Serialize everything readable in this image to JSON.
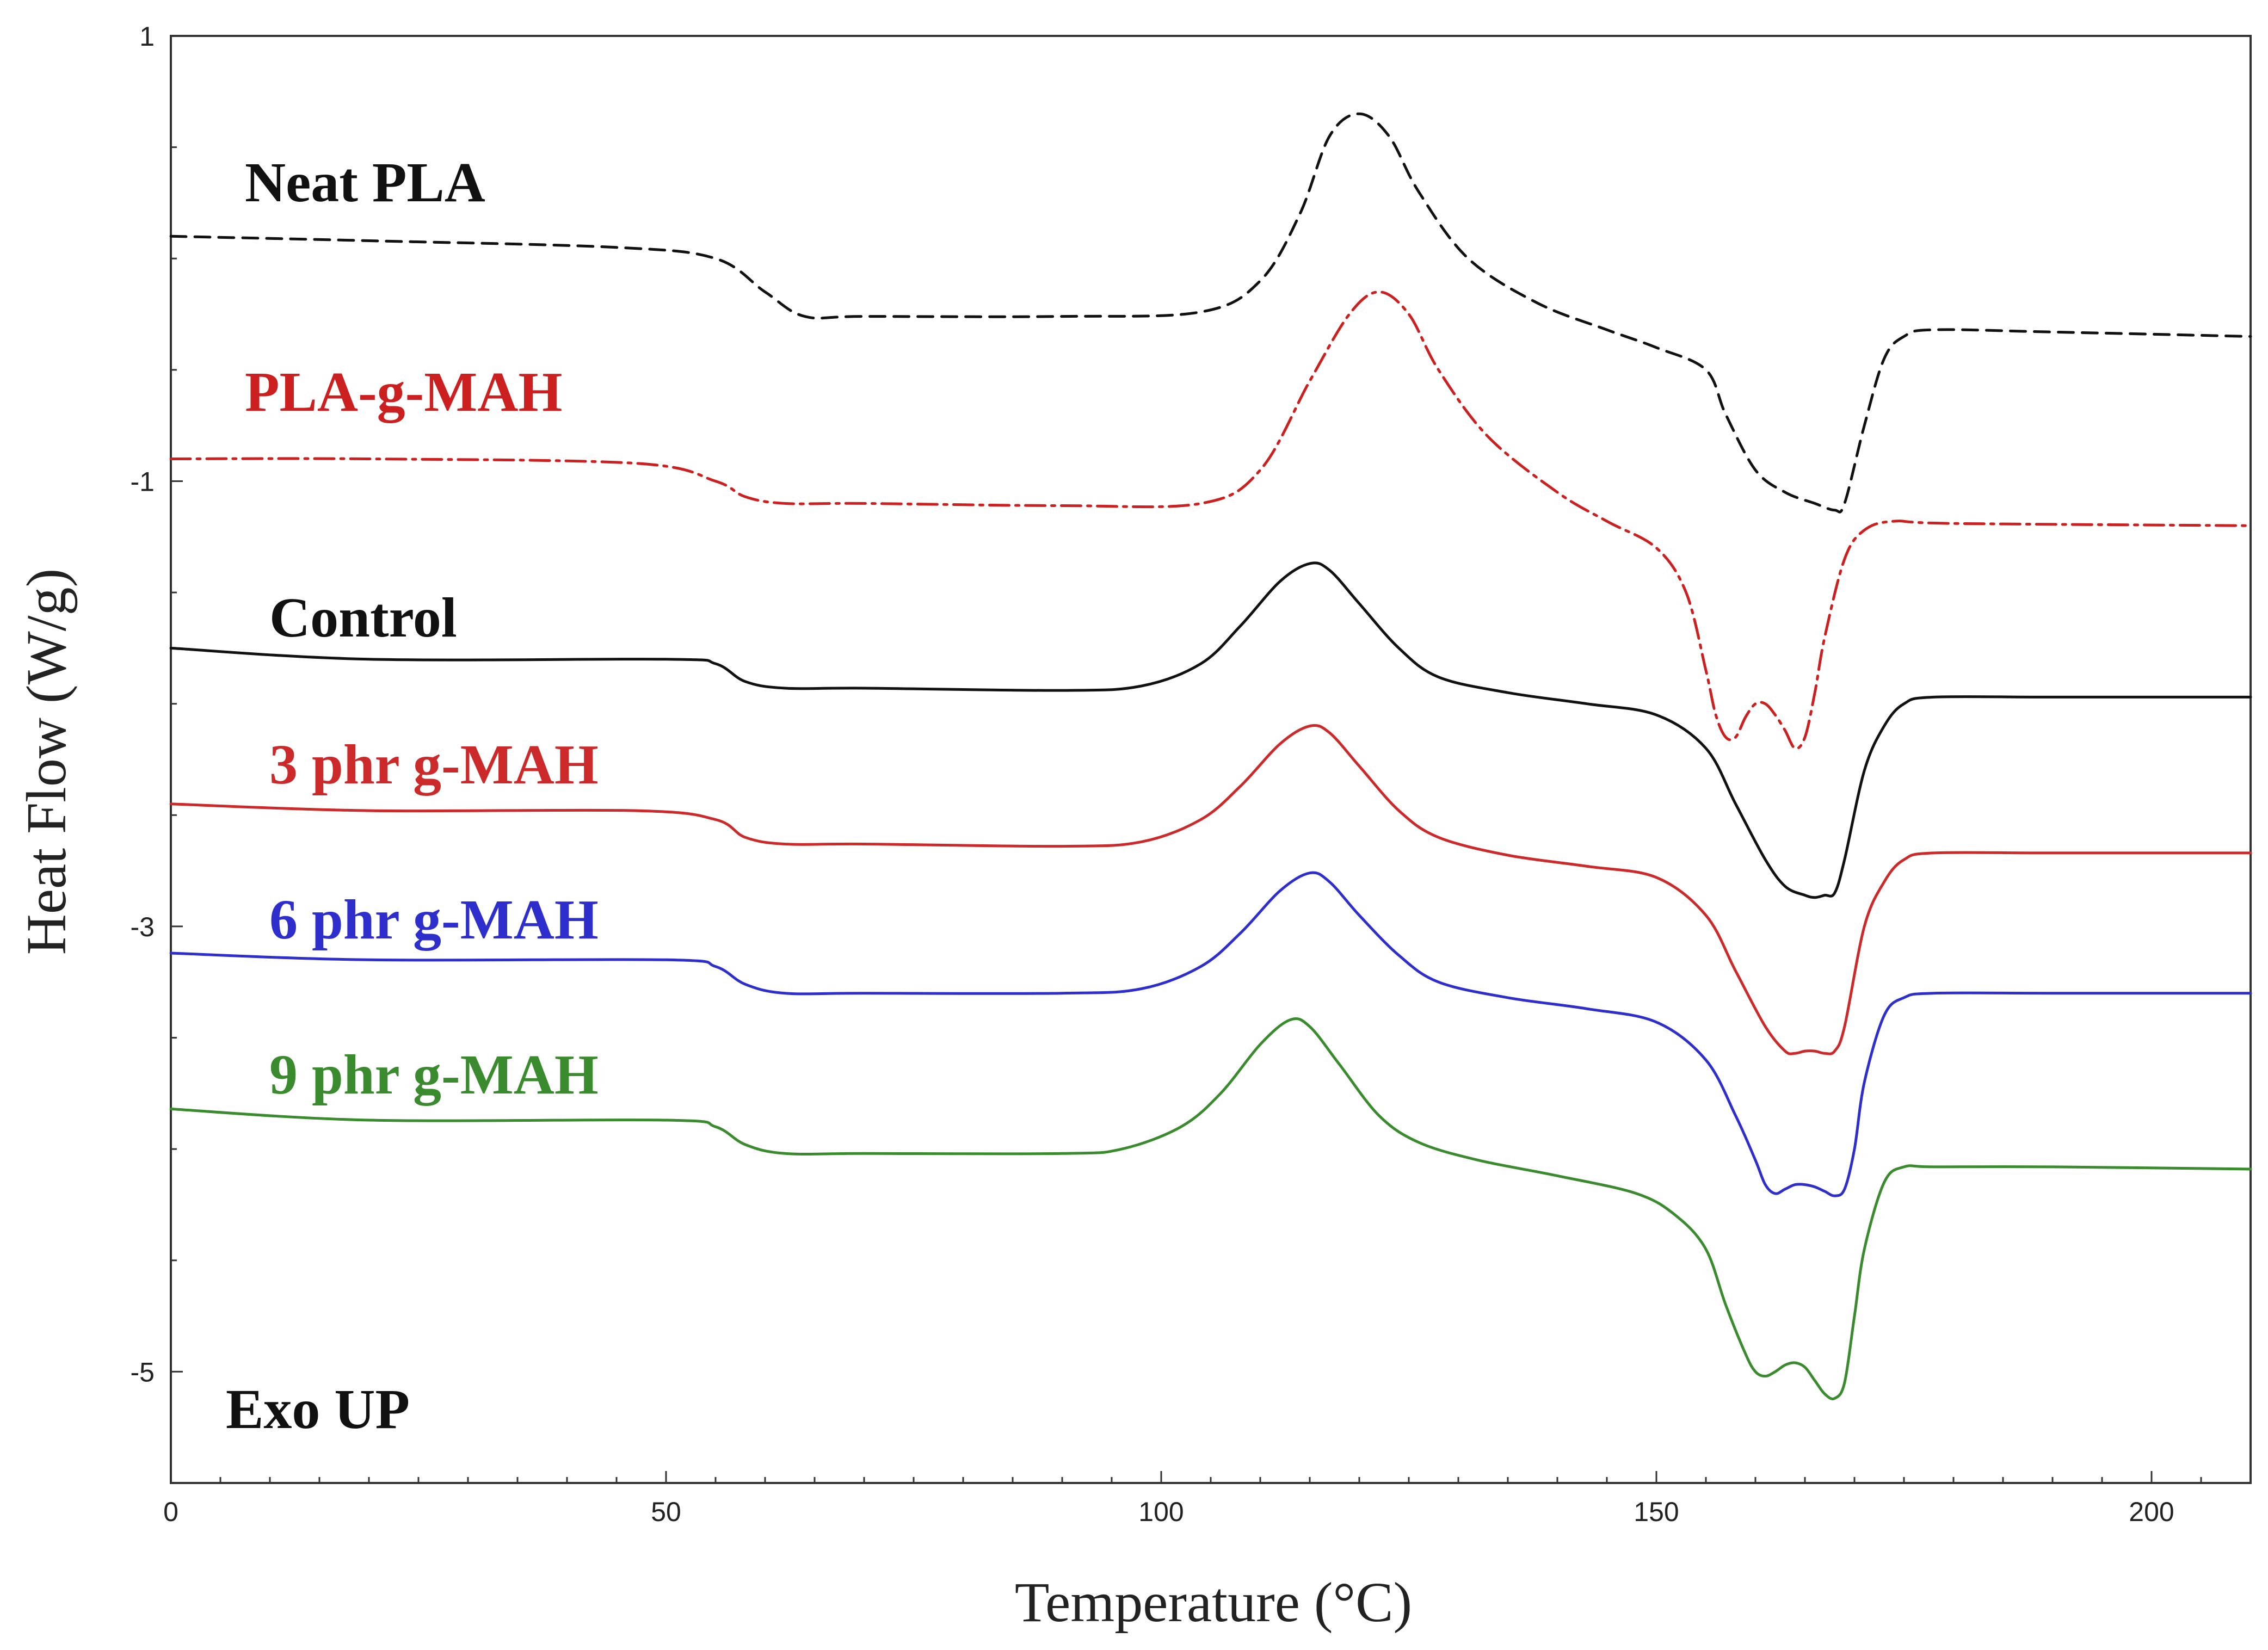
{
  "chart_data": {
    "type": "line",
    "title": "",
    "xlabel": "Temperature (°C)",
    "ylabel": "Heat Flow (W/g)",
    "xlim": [
      0,
      210
    ],
    "ylim": [
      -5.5,
      1
    ],
    "xticks": [
      0,
      50,
      100,
      150,
      200
    ],
    "xtick_labels": [
      "0",
      "50",
      "100",
      "150",
      "200"
    ],
    "yticks": [
      1,
      -1,
      -3,
      -5
    ],
    "ytick_labels": [
      "1",
      "-1",
      "-3",
      "-5"
    ],
    "annotation": "Exo UP",
    "series": [
      {
        "name": "Neat PLA",
        "color": "#111111",
        "dash": "28,16",
        "x": [
          0,
          20,
          45,
          55,
          60,
          64,
          70,
          90,
          104,
          110,
          114,
          117,
          120,
          123,
          126,
          131,
          138,
          145,
          150,
          155,
          157,
          160,
          163,
          166,
          168,
          169,
          171,
          173,
          175,
          178,
          190,
          210
        ],
        "y": [
          0.1,
          0.08,
          0.05,
          0.0,
          -0.15,
          -0.26,
          -0.26,
          -0.26,
          -0.24,
          -0.1,
          0.2,
          0.55,
          0.65,
          0.55,
          0.3,
          0.0,
          -0.2,
          -0.32,
          -0.4,
          -0.5,
          -0.7,
          -0.95,
          -1.05,
          -1.1,
          -1.13,
          -1.1,
          -0.75,
          -0.45,
          -0.35,
          -0.32,
          -0.33,
          -0.35
        ]
      },
      {
        "name": "PLA-g-MAH",
        "color": "#cc1f1f",
        "dash": "36,12,6,12",
        "x": [
          0,
          20,
          47,
          55,
          58,
          62,
          70,
          90,
          104,
          110,
          115,
          119,
          122,
          125,
          128,
          133,
          140,
          145,
          150,
          153,
          155,
          156,
          157,
          158,
          159,
          160,
          161,
          162,
          163,
          164,
          165,
          166,
          167,
          169,
          171,
          174,
          180,
          210
        ],
        "y": [
          -0.9,
          -0.9,
          -0.92,
          -1.0,
          -1.07,
          -1.1,
          -1.1,
          -1.11,
          -1.1,
          -0.95,
          -0.55,
          -0.25,
          -0.15,
          -0.25,
          -0.5,
          -0.8,
          -1.05,
          -1.18,
          -1.3,
          -1.5,
          -1.85,
          -2.05,
          -2.15,
          -2.15,
          -2.06,
          -2.0,
          -2.0,
          -2.05,
          -2.12,
          -2.2,
          -2.15,
          -1.95,
          -1.7,
          -1.35,
          -1.22,
          -1.18,
          -1.19,
          -1.2
        ]
      },
      {
        "name": "Control",
        "color": "#111111",
        "dash": "",
        "x": [
          0,
          20,
          50,
          55,
          58,
          62,
          70,
          90,
          98,
          104,
          108,
          112,
          115,
          117,
          120,
          124,
          128,
          135,
          143,
          150,
          155,
          158,
          161,
          163,
          165,
          166,
          167,
          168,
          169,
          171,
          173,
          175,
          178,
          190,
          210
        ],
        "y": [
          -1.75,
          -1.8,
          -1.8,
          -1.82,
          -1.9,
          -1.93,
          -1.93,
          -1.94,
          -1.92,
          -1.82,
          -1.65,
          -1.45,
          -1.37,
          -1.4,
          -1.55,
          -1.75,
          -1.88,
          -1.95,
          -2.0,
          -2.05,
          -2.2,
          -2.45,
          -2.7,
          -2.82,
          -2.86,
          -2.87,
          -2.86,
          -2.85,
          -2.7,
          -2.3,
          -2.1,
          -2.0,
          -1.97,
          -1.97,
          -1.97
        ]
      },
      {
        "name": "3 phr g-MAH",
        "color": "#cc2a2a",
        "dash": "",
        "x": [
          0,
          20,
          47,
          55,
          58,
          62,
          70,
          90,
          98,
          104,
          108,
          112,
          115,
          117,
          120,
          124,
          128,
          135,
          143,
          150,
          155,
          158,
          161,
          163,
          164,
          165,
          166,
          167,
          168,
          169,
          171,
          173,
          175,
          178,
          190,
          210
        ],
        "y": [
          -2.45,
          -2.48,
          -2.48,
          -2.52,
          -2.6,
          -2.63,
          -2.63,
          -2.64,
          -2.62,
          -2.52,
          -2.37,
          -2.18,
          -2.1,
          -2.13,
          -2.28,
          -2.48,
          -2.6,
          -2.68,
          -2.73,
          -2.78,
          -2.95,
          -3.2,
          -3.45,
          -3.56,
          -3.57,
          -3.56,
          -3.56,
          -3.57,
          -3.56,
          -3.45,
          -3.0,
          -2.8,
          -2.7,
          -2.67,
          -2.67,
          -2.67
        ]
      },
      {
        "name": "6 phr g-MAH",
        "color": "#2e2ecc",
        "dash": "",
        "x": [
          0,
          20,
          50,
          55,
          58,
          62,
          70,
          90,
          98,
          104,
          108,
          112,
          115,
          117,
          120,
          124,
          128,
          135,
          143,
          150,
          155,
          158,
          160,
          161,
          162,
          163,
          164,
          165,
          166,
          167,
          168,
          169,
          170,
          171,
          173,
          175,
          178,
          190,
          210
        ],
        "y": [
          -3.12,
          -3.15,
          -3.15,
          -3.18,
          -3.26,
          -3.3,
          -3.3,
          -3.3,
          -3.28,
          -3.18,
          -3.03,
          -2.84,
          -2.76,
          -2.8,
          -2.95,
          -3.13,
          -3.25,
          -3.32,
          -3.37,
          -3.43,
          -3.6,
          -3.85,
          -4.05,
          -4.16,
          -4.2,
          -4.18,
          -4.16,
          -4.16,
          -4.17,
          -4.19,
          -4.21,
          -4.18,
          -4.0,
          -3.7,
          -3.4,
          -3.32,
          -3.3,
          -3.3,
          -3.3
        ]
      },
      {
        "name": "9 phr g-MAH",
        "color": "#3a8a2e",
        "dash": "",
        "x": [
          0,
          20,
          50,
          55,
          58,
          62,
          70,
          90,
          96,
          102,
          106,
          110,
          113,
          115,
          118,
          122,
          126,
          132,
          140,
          148,
          152,
          155,
          157,
          159,
          160,
          161,
          162,
          163,
          164,
          165,
          166,
          167,
          168,
          169,
          170,
          171,
          173,
          175,
          178,
          190,
          210
        ],
        "y": [
          -3.82,
          -3.87,
          -3.87,
          -3.9,
          -3.98,
          -4.02,
          -4.02,
          -4.02,
          -4.0,
          -3.9,
          -3.75,
          -3.53,
          -3.42,
          -3.45,
          -3.62,
          -3.85,
          -3.97,
          -4.05,
          -4.12,
          -4.2,
          -4.3,
          -4.45,
          -4.7,
          -4.92,
          -5.0,
          -5.02,
          -5.0,
          -4.97,
          -4.96,
          -4.98,
          -5.04,
          -5.1,
          -5.12,
          -5.05,
          -4.75,
          -4.45,
          -4.15,
          -4.08,
          -4.08,
          -4.08,
          -4.09
        ]
      }
    ],
    "series_labels": [
      "Neat PLA",
      "PLA-g-MAH",
      "Control",
      "3 phr g-MAH",
      "6 phr g-MAH",
      "9 phr g-MAH"
    ]
  }
}
